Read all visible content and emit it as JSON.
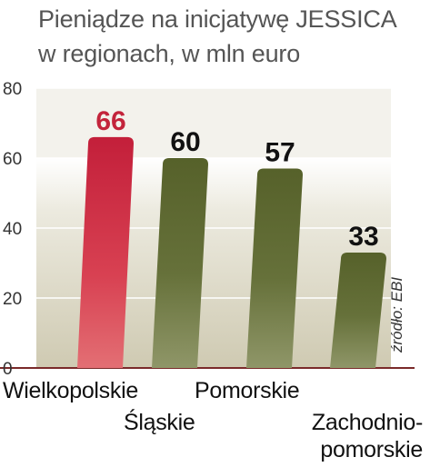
{
  "title": {
    "line1": "Pieniądze na inicjatywę JESSICA",
    "line2": "w regionach, w mln euro"
  },
  "source": "źródło: EBI",
  "colors": {
    "highlight": "#c3243b",
    "bar": "#5e6a2f",
    "band": "#d3cfba",
    "axis_text": "#333333",
    "bar_label": "#111111",
    "highlight_label": "#c3243b"
  },
  "chart_data": {
    "type": "bar",
    "categories": [
      "Wielkopolskie",
      "Śląskie",
      "Pomorskie",
      "Zachodnio-\npomorskie"
    ],
    "values": [
      66,
      60,
      57,
      33
    ],
    "highlight_index": 0,
    "title": "Pieniądze na inicjatywę JESSICA w regionach, w mln euro",
    "xlabel": "",
    "ylabel": "",
    "ylim": [
      0,
      80
    ],
    "yticks": [
      0,
      20,
      40,
      60,
      80
    ],
    "grid": true
  }
}
